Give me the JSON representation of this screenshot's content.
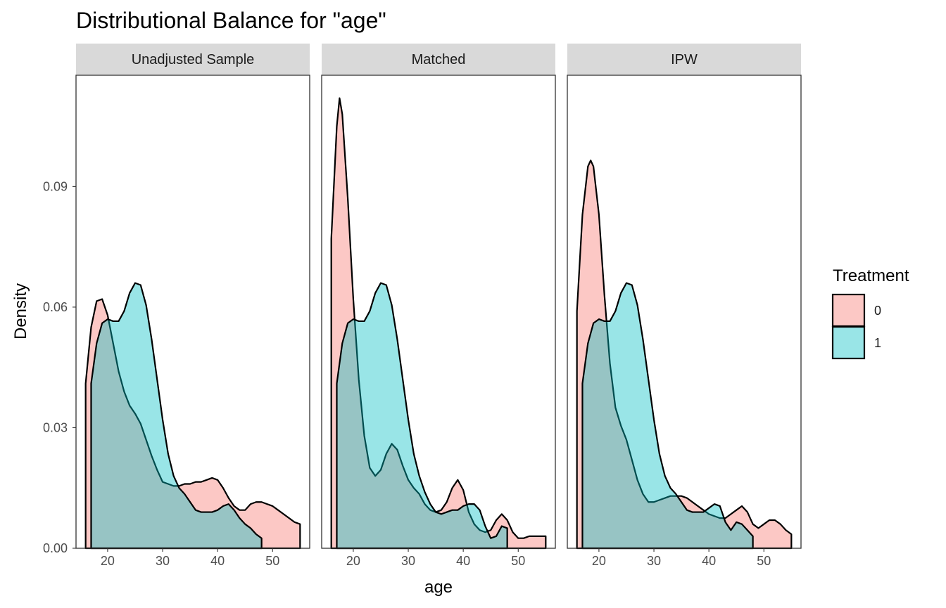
{
  "chart_data": {
    "type": "area",
    "title": "Distributional Balance for \"age\"",
    "xlabel": "age",
    "ylabel": "Density",
    "xlim": [
      14.25,
      56.75
    ],
    "ylim": [
      0,
      0.1177
    ],
    "x_ticks": [
      20,
      30,
      40,
      50
    ],
    "x_tick_labels": [
      "20",
      "30",
      "40",
      "50"
    ],
    "y_ticks": [
      0,
      0.03,
      0.06,
      0.09
    ],
    "y_tick_labels": [
      "0.00",
      "0.03",
      "0.06",
      "0.09"
    ],
    "grid": false,
    "legend": {
      "title": "Treatment",
      "placement": "right",
      "entries": [
        {
          "label": "0",
          "color": "#F8766D"
        },
        {
          "label": "1",
          "color": "#00BFC4"
        }
      ]
    },
    "fill_alpha": 0.4,
    "outline_color": "#000000",
    "panels": [
      {
        "label": "Unadjusted Sample",
        "series": [
          {
            "name": "0",
            "color": "#F8766D",
            "points": [
              [
                16,
                0
              ],
              [
                16,
                0.041
              ],
              [
                17,
                0.055
              ],
              [
                18,
                0.0615
              ],
              [
                19,
                0.062
              ],
              [
                20,
                0.058
              ],
              [
                21,
                0.051
              ],
              [
                22,
                0.044
              ],
              [
                23,
                0.039
              ],
              [
                24,
                0.0355
              ],
              [
                25,
                0.0335
              ],
              [
                26,
                0.031
              ],
              [
                27,
                0.027
              ],
              [
                28,
                0.023
              ],
              [
                29,
                0.0195
              ],
              [
                30,
                0.0165
              ],
              [
                31,
                0.016
              ],
              [
                32,
                0.0155
              ],
              [
                33,
                0.0155
              ],
              [
                34,
                0.016
              ],
              [
                35,
                0.016
              ],
              [
                36,
                0.0165
              ],
              [
                37,
                0.0165
              ],
              [
                38,
                0.017
              ],
              [
                39,
                0.0175
              ],
              [
                40,
                0.017
              ],
              [
                41,
                0.015
              ],
              [
                42,
                0.0125
              ],
              [
                43,
                0.0105
              ],
              [
                44,
                0.0095
              ],
              [
                45,
                0.0095
              ],
              [
                46,
                0.011
              ],
              [
                47,
                0.0115
              ],
              [
                48,
                0.0115
              ],
              [
                49,
                0.011
              ],
              [
                50,
                0.0105
              ],
              [
                51,
                0.0095
              ],
              [
                52,
                0.0085
              ],
              [
                53,
                0.0075
              ],
              [
                54,
                0.0065
              ],
              [
                55,
                0.006
              ],
              [
                55,
                0
              ]
            ]
          },
          {
            "name": "1",
            "color": "#00BFC4",
            "points": [
              [
                17,
                0
              ],
              [
                17,
                0.041
              ],
              [
                18,
                0.051
              ],
              [
                19,
                0.056
              ],
              [
                20,
                0.057
              ],
              [
                21,
                0.0565
              ],
              [
                22,
                0.0565
              ],
              [
                23,
                0.059
              ],
              [
                24,
                0.0635
              ],
              [
                25,
                0.066
              ],
              [
                26,
                0.0655
              ],
              [
                27,
                0.0605
              ],
              [
                28,
                0.052
              ],
              [
                29,
                0.042
              ],
              [
                30,
                0.032
              ],
              [
                31,
                0.0235
              ],
              [
                32,
                0.018
              ],
              [
                33,
                0.015
              ],
              [
                34,
                0.0135
              ],
              [
                35,
                0.0115
              ],
              [
                36,
                0.0095
              ],
              [
                37,
                0.009
              ],
              [
                38,
                0.009
              ],
              [
                39,
                0.009
              ],
              [
                40,
                0.0095
              ],
              [
                41,
                0.0105
              ],
              [
                42,
                0.011
              ],
              [
                43,
                0.0095
              ],
              [
                44,
                0.0075
              ],
              [
                45,
                0.006
              ],
              [
                46,
                0.005
              ],
              [
                47,
                0.0035
              ],
              [
                48,
                0.0025
              ],
              [
                48,
                0
              ]
            ]
          }
        ]
      },
      {
        "label": "Matched",
        "series": [
          {
            "name": "0",
            "color": "#F8766D",
            "points": [
              [
                16,
                0
              ],
              [
                16,
                0.077
              ],
              [
                17,
                0.105
              ],
              [
                17.5,
                0.112
              ],
              [
                18,
                0.108
              ],
              [
                19,
                0.087
              ],
              [
                20,
                0.062
              ],
              [
                21,
                0.042
              ],
              [
                22,
                0.028
              ],
              [
                23,
                0.02
              ],
              [
                24,
                0.018
              ],
              [
                25,
                0.0195
              ],
              [
                26,
                0.0235
              ],
              [
                27,
                0.026
              ],
              [
                28,
                0.0245
              ],
              [
                29,
                0.0205
              ],
              [
                30,
                0.017
              ],
              [
                31,
                0.015
              ],
              [
                32,
                0.0135
              ],
              [
                33,
                0.011
              ],
              [
                34,
                0.0095
              ],
              [
                35,
                0.009
              ],
              [
                36,
                0.0095
              ],
              [
                37,
                0.0115
              ],
              [
                38,
                0.015
              ],
              [
                39,
                0.017
              ],
              [
                40,
                0.0145
              ],
              [
                41,
                0.009
              ],
              [
                42,
                0.006
              ],
              [
                43,
                0.0045
              ],
              [
                44,
                0.004
              ],
              [
                45,
                0.0045
              ],
              [
                46,
                0.007
              ],
              [
                47,
                0.0085
              ],
              [
                48,
                0.007
              ],
              [
                49,
                0.004
              ],
              [
                50,
                0.0025
              ],
              [
                51,
                0.0025
              ],
              [
                52,
                0.003
              ],
              [
                53,
                0.003
              ],
              [
                54,
                0.003
              ],
              [
                55,
                0.003
              ],
              [
                55,
                0
              ]
            ]
          },
          {
            "name": "1",
            "color": "#00BFC4",
            "points": [
              [
                17,
                0
              ],
              [
                17,
                0.041
              ],
              [
                18,
                0.051
              ],
              [
                19,
                0.056
              ],
              [
                20,
                0.057
              ],
              [
                21,
                0.0565
              ],
              [
                22,
                0.0565
              ],
              [
                23,
                0.059
              ],
              [
                24,
                0.0635
              ],
              [
                25,
                0.066
              ],
              [
                26,
                0.0655
              ],
              [
                27,
                0.0605
              ],
              [
                28,
                0.052
              ],
              [
                29,
                0.042
              ],
              [
                30,
                0.032
              ],
              [
                31,
                0.0235
              ],
              [
                32,
                0.018
              ],
              [
                33,
                0.014
              ],
              [
                34,
                0.011
              ],
              [
                35,
                0.009
              ],
              [
                36,
                0.0085
              ],
              [
                37,
                0.009
              ],
              [
                38,
                0.0095
              ],
              [
                39,
                0.0095
              ],
              [
                40,
                0.0105
              ],
              [
                41,
                0.011
              ],
              [
                42,
                0.011
              ],
              [
                43,
                0.0095
              ],
              [
                44,
                0.0055
              ],
              [
                45,
                0.0025
              ],
              [
                46,
                0.003
              ],
              [
                47,
                0.0055
              ],
              [
                48,
                0.005
              ],
              [
                48,
                0
              ]
            ]
          }
        ]
      },
      {
        "label": "IPW",
        "series": [
          {
            "name": "0",
            "color": "#F8766D",
            "points": [
              [
                16,
                0
              ],
              [
                16,
                0.059
              ],
              [
                17,
                0.083
              ],
              [
                18,
                0.095
              ],
              [
                18.5,
                0.0965
              ],
              [
                19,
                0.095
              ],
              [
                20,
                0.083
              ],
              [
                21,
                0.063
              ],
              [
                22,
                0.046
              ],
              [
                23,
                0.035
              ],
              [
                24,
                0.0305
              ],
              [
                25,
                0.027
              ],
              [
                26,
                0.022
              ],
              [
                27,
                0.017
              ],
              [
                28,
                0.0135
              ],
              [
                29,
                0.0115
              ],
              [
                30,
                0.0115
              ],
              [
                31,
                0.012
              ],
              [
                32,
                0.0125
              ],
              [
                33,
                0.013
              ],
              [
                34,
                0.013
              ],
              [
                35,
                0.013
              ],
              [
                36,
                0.0125
              ],
              [
                37,
                0.0115
              ],
              [
                38,
                0.0105
              ],
              [
                39,
                0.0095
              ],
              [
                40,
                0.0085
              ],
              [
                41,
                0.008
              ],
              [
                42,
                0.0075
              ],
              [
                43,
                0.0075
              ],
              [
                44,
                0.0085
              ],
              [
                45,
                0.0095
              ],
              [
                46,
                0.0105
              ],
              [
                47,
                0.009
              ],
              [
                48,
                0.006
              ],
              [
                49,
                0.005
              ],
              [
                50,
                0.006
              ],
              [
                51,
                0.007
              ],
              [
                52,
                0.007
              ],
              [
                53,
                0.006
              ],
              [
                54,
                0.0045
              ],
              [
                55,
                0.0035
              ],
              [
                55,
                0
              ]
            ]
          },
          {
            "name": "1",
            "color": "#00BFC4",
            "points": [
              [
                17,
                0
              ],
              [
                17,
                0.041
              ],
              [
                18,
                0.051
              ],
              [
                19,
                0.056
              ],
              [
                20,
                0.057
              ],
              [
                21,
                0.0565
              ],
              [
                22,
                0.0565
              ],
              [
                23,
                0.059
              ],
              [
                24,
                0.0635
              ],
              [
                25,
                0.066
              ],
              [
                26,
                0.0655
              ],
              [
                27,
                0.0605
              ],
              [
                28,
                0.052
              ],
              [
                29,
                0.042
              ],
              [
                30,
                0.032
              ],
              [
                31,
                0.0235
              ],
              [
                32,
                0.018
              ],
              [
                33,
                0.015
              ],
              [
                34,
                0.0135
              ],
              [
                35,
                0.0115
              ],
              [
                36,
                0.0095
              ],
              [
                37,
                0.009
              ],
              [
                38,
                0.009
              ],
              [
                39,
                0.009
              ],
              [
                40,
                0.01
              ],
              [
                41,
                0.011
              ],
              [
                42,
                0.0105
              ],
              [
                43,
                0.0065
              ],
              [
                44,
                0.0045
              ],
              [
                45,
                0.0065
              ],
              [
                46,
                0.006
              ],
              [
                47,
                0.0045
              ],
              [
                48,
                0.003
              ],
              [
                48,
                0
              ]
            ]
          }
        ]
      }
    ]
  }
}
